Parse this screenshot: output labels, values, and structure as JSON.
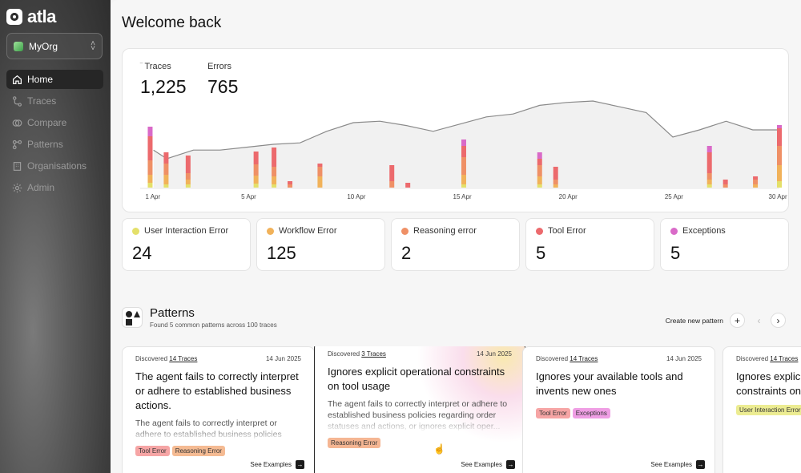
{
  "app": {
    "logo_text": "atla",
    "org_name": "MyOrg"
  },
  "nav": [
    {
      "label": "Home",
      "icon": "home-icon",
      "active": true
    },
    {
      "label": "Traces",
      "icon": "traces-icon"
    },
    {
      "label": "Compare",
      "icon": "compare-icon"
    },
    {
      "label": "Patterns",
      "icon": "patterns-icon"
    },
    {
      "label": "Organisations",
      "icon": "organisations-icon"
    },
    {
      "label": "Admin",
      "icon": "gear-icon"
    }
  ],
  "page": {
    "title": "Welcome back"
  },
  "stats": {
    "traces_label": "Traces",
    "traces_value": "1,225",
    "errors_label": "Errors",
    "errors_value": "765"
  },
  "chart_data": {
    "type": "line",
    "x_ticks": [
      "1 Apr",
      "5 Apr",
      "10 Apr",
      "15 Apr",
      "20 Apr",
      "25 Apr",
      "30 Apr"
    ],
    "traces_line": [
      {
        "x": 1,
        "y": 52
      },
      {
        "x": 2,
        "y": 40
      },
      {
        "x": 4,
        "y": 52
      },
      {
        "x": 6,
        "y": 52
      },
      {
        "x": 8,
        "y": 56
      },
      {
        "x": 10,
        "y": 60
      },
      {
        "x": 12,
        "y": 62
      },
      {
        "x": 14,
        "y": 78
      },
      {
        "x": 16,
        "y": 90
      },
      {
        "x": 18,
        "y": 92
      },
      {
        "x": 20,
        "y": 86
      },
      {
        "x": 22,
        "y": 78
      },
      {
        "x": 24,
        "y": 88
      },
      {
        "x": 26,
        "y": 98
      },
      {
        "x": 28,
        "y": 102
      },
      {
        "x": 30,
        "y": 114
      },
      {
        "x": 32,
        "y": 118
      },
      {
        "x": 34,
        "y": 120
      },
      {
        "x": 36,
        "y": 112
      },
      {
        "x": 38,
        "y": 104
      },
      {
        "x": 40,
        "y": 70
      },
      {
        "x": 42,
        "y": 80
      },
      {
        "x": 44,
        "y": 92
      },
      {
        "x": 46,
        "y": 80
      },
      {
        "x": 48,
        "y": 80
      }
    ],
    "error_series": [
      {
        "name": "User Interaction Error",
        "color": "#e4e06a"
      },
      {
        "name": "Workflow Error",
        "color": "#f1b25a"
      },
      {
        "name": "Reasoning error",
        "color": "#ef9066"
      },
      {
        "name": "Tool Error",
        "color": "#ec6a6d"
      },
      {
        "name": "Exceptions",
        "color": "#d96ac8"
      }
    ],
    "error_bars": [
      {
        "x": 1.0,
        "stack": [
          6,
          10,
          18,
          30,
          12
        ]
      },
      {
        "x": 2.6,
        "stack": [
          4,
          12,
          14,
          14,
          0
        ]
      },
      {
        "x": 4.8,
        "stack": [
          4,
          6,
          8,
          22,
          0
        ]
      },
      {
        "x": 11.6,
        "stack": [
          5,
          10,
          14,
          16,
          0
        ]
      },
      {
        "x": 13.4,
        "stack": [
          4,
          10,
          12,
          24,
          0
        ]
      },
      {
        "x": 15.0,
        "stack": [
          0,
          0,
          4,
          4,
          0
        ]
      },
      {
        "x": 18.0,
        "stack": [
          0,
          14,
          12,
          4,
          0
        ]
      },
      {
        "x": 25.2,
        "stack": [
          0,
          0,
          8,
          20,
          0
        ]
      },
      {
        "x": 26.8,
        "stack": [
          0,
          0,
          0,
          6,
          0
        ]
      },
      {
        "x": 32.4,
        "stack": [
          4,
          12,
          22,
          14,
          8
        ]
      },
      {
        "x": 40.0,
        "stack": [
          4,
          10,
          14,
          8,
          8
        ]
      },
      {
        "x": 41.6,
        "stack": [
          0,
          4,
          6,
          16,
          0
        ]
      },
      {
        "x": 57.0,
        "stack": [
          4,
          6,
          8,
          26,
          8
        ]
      },
      {
        "x": 58.6,
        "stack": [
          0,
          0,
          4,
          6,
          0
        ]
      },
      {
        "x": 61.6,
        "stack": [
          0,
          4,
          6,
          4,
          0
        ]
      },
      {
        "x": 64.0,
        "stack": [
          8,
          20,
          24,
          22,
          4
        ]
      }
    ]
  },
  "categories": [
    {
      "label": "User Interaction Error",
      "value": "24",
      "color": "#e4e06a"
    },
    {
      "label": "Workflow Error",
      "value": "125",
      "color": "#f1b25a"
    },
    {
      "label": "Reasoning error",
      "value": "2",
      "color": "#ef9066"
    },
    {
      "label": "Tool Error",
      "value": "5",
      "color": "#ec6a6d"
    },
    {
      "label": "Exceptions",
      "value": "5",
      "color": "#d96ac8"
    }
  ],
  "patterns": {
    "title": "Patterns",
    "subtitle": "Found 5 common patterns across 100 traces",
    "create_label": "Create new pattern",
    "cards": [
      {
        "discovered": "Discovered",
        "traces_link": "14 Traces",
        "date": "14 Jun 2025",
        "title": "The agent fails to correctly interpret or adhere to established business actions.",
        "desc": "The agent fails to correctly interpret or adhere to established business policies regarding order",
        "tags": [
          {
            "label": "Tool Error",
            "color": "#f6a5a5"
          },
          {
            "label": "Reasoning Error",
            "color": "#f5bb93"
          }
        ],
        "see": "See Examples"
      },
      {
        "discovered": "Discovered",
        "traces_link": "3 Traces",
        "date": "14 Jun 2025",
        "title": "Ignores explicit operational constraints on tool usage",
        "desc": "The agent fails to correctly interpret or adhere to established business policies regarding order statuses and actions, or ignores explicit oper...",
        "tags": [
          {
            "label": "Reasoning Error",
            "color": "#f5b693"
          }
        ],
        "see": "See Examples"
      },
      {
        "discovered": "Discovered",
        "traces_link": "14 Traces",
        "date": "14 Jun 2025",
        "title": "Ignores your available tools and invents new ones",
        "desc": "",
        "tags": [
          {
            "label": "Tool Error",
            "color": "#f6a5a5"
          },
          {
            "label": "Exceptions",
            "color": "#ef9ee4"
          }
        ],
        "see": "See Examples"
      },
      {
        "discovered": "Discovered",
        "traces_link": "14 Traces",
        "date": "",
        "title": "Ignores explicit operational constraints on",
        "desc": "",
        "tags": [
          {
            "label": "User Interaction Error",
            "color": "#ecec92"
          }
        ],
        "see": ""
      }
    ]
  }
}
